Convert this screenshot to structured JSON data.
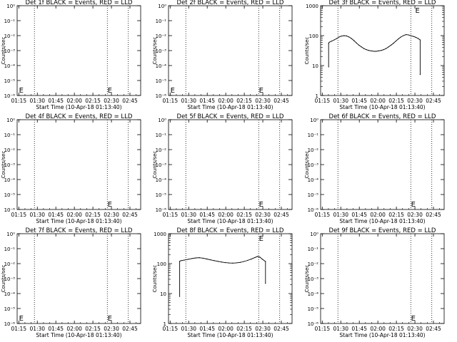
{
  "chart_data": [
    {
      "type": "line",
      "title": "Det 1f BLACK = Events, RED = LLD",
      "xlabel": "Start Time (10-Apr-18 01:13:40)",
      "ylabel": "Counts/sec",
      "x_tick_labels": [
        "01:15",
        "01:30",
        "01:45",
        "02:00",
        "02:15",
        "02:30",
        "02:45"
      ],
      "x_tick_minutes": [
        1.33,
        16.33,
        31.33,
        46.33,
        61.33,
        76.33,
        91.33
      ],
      "xlim_minutes": [
        0,
        100
      ],
      "yscale": "log",
      "ylim": [
        1,
        1e-06
      ],
      "y_tick_values": [
        1,
        0.1,
        0.01,
        0.001,
        0.0001,
        1e-05,
        1e-06
      ],
      "y_tick_labels": [
        "10⁰",
        "10⁻¹",
        "10⁻²",
        "10⁻³",
        "10⁻⁴",
        "10⁻⁵",
        "10⁻⁶"
      ],
      "dotted_vlines_minutes": [
        14,
        73,
        90
      ],
      "markers": [
        {
          "x": 1.5,
          "label": "E"
        },
        {
          "x": 73.2,
          "label": "E"
        }
      ],
      "series": []
    },
    {
      "type": "line",
      "title": "Det 2f BLACK = Events, RED = LLD",
      "xlabel": "Start Time (10-Apr-18 01:13:40)",
      "ylabel": "Counts/sec",
      "x_tick_labels": [
        "01:15",
        "01:30",
        "01:45",
        "02:00",
        "02:15",
        "02:30",
        "02:45"
      ],
      "x_tick_minutes": [
        1.33,
        16.33,
        31.33,
        46.33,
        61.33,
        76.33,
        91.33
      ],
      "xlim_minutes": [
        0,
        100
      ],
      "yscale": "log",
      "ylim": [
        1,
        1e-06
      ],
      "y_tick_values": [
        1,
        0.1,
        0.01,
        0.001,
        0.0001,
        1e-05,
        1e-06
      ],
      "y_tick_labels": [
        "10⁰",
        "10⁻¹",
        "10⁻²",
        "10⁻³",
        "10⁻⁴",
        "10⁻⁵",
        "10⁻⁶"
      ],
      "dotted_vlines_minutes": [
        14,
        73,
        90
      ],
      "markers": [
        {
          "x": 1.5,
          "label": "E"
        },
        {
          "x": 73.2,
          "label": "E"
        }
      ],
      "series": []
    },
    {
      "type": "line",
      "title": "Det 3f BLACK = Events, RED = LLD",
      "xlabel": "Start Time (10-Apr-18 01:13:40)",
      "ylabel": "Counts/sec",
      "x_tick_labels": [
        "01:15",
        "01:30",
        "01:45",
        "02:00",
        "02:15",
        "02:30",
        "02:45"
      ],
      "x_tick_minutes": [
        1.33,
        16.33,
        31.33,
        46.33,
        61.33,
        76.33,
        91.33
      ],
      "xlim_minutes": [
        0,
        100
      ],
      "yscale": "log",
      "ylim": [
        1,
        1000
      ],
      "y_tick_values": [
        1,
        10,
        100,
        1000
      ],
      "y_tick_labels": [
        "1",
        "10",
        "100",
        "1000"
      ],
      "dotted_vlines_minutes": [
        14,
        73,
        90
      ],
      "markers": [
        {
          "x": 76.6,
          "label": "E"
        }
      ],
      "series": [
        {
          "color": "#000000",
          "x": [
            6.5,
            6.5,
            7,
            9,
            11,
            13,
            15,
            17,
            19,
            21,
            23,
            25,
            27,
            29,
            31,
            33,
            35,
            37,
            39,
            41,
            43,
            45,
            47,
            49,
            51,
            53,
            55,
            57,
            59,
            61,
            63,
            65,
            67,
            69,
            71,
            73,
            75,
            77,
            79,
            80.6,
            80.6
          ],
          "y": [
            9,
            55,
            60,
            66,
            72,
            80,
            90,
            97,
            100,
            98,
            90,
            80,
            68,
            57,
            48,
            42,
            37,
            34,
            32,
            31,
            30,
            30,
            31,
            32,
            34,
            37,
            42,
            48,
            56,
            66,
            78,
            90,
            100,
            108,
            106,
            99,
            94,
            88,
            80,
            72,
            5
          ]
        }
      ]
    },
    {
      "type": "line",
      "title": "Det 4f BLACK = Events, RED = LLD",
      "xlabel": "Start Time (10-Apr-18 01:13:40)",
      "ylabel": "Counts/sec",
      "x_tick_labels": [
        "01:15",
        "01:30",
        "01:45",
        "02:00",
        "02:15",
        "02:30",
        "02:45"
      ],
      "x_tick_minutes": [
        1.33,
        16.33,
        31.33,
        46.33,
        61.33,
        76.33,
        91.33
      ],
      "xlim_minutes": [
        0,
        100
      ],
      "yscale": "log",
      "ylim": [
        1,
        1e-06
      ],
      "y_tick_values": [
        1,
        0.1,
        0.01,
        0.001,
        0.0001,
        1e-05,
        1e-06
      ],
      "y_tick_labels": [
        "10⁰",
        "10⁻¹",
        "10⁻²",
        "10⁻³",
        "10⁻⁴",
        "10⁻⁵",
        "10⁻⁶"
      ],
      "dotted_vlines_minutes": [
        14,
        73,
        90
      ],
      "markers": [
        {
          "x": 73.2,
          "label": "E"
        }
      ],
      "series": []
    },
    {
      "type": "line",
      "title": "Det 5f BLACK = Events, RED = LLD",
      "xlabel": "Start Time (10-Apr-18 01:13:40)",
      "ylabel": "Counts/sec",
      "x_tick_labels": [
        "01:15",
        "01:30",
        "01:45",
        "02:00",
        "02:15",
        "02:30",
        "02:45"
      ],
      "x_tick_minutes": [
        1.33,
        16.33,
        31.33,
        46.33,
        61.33,
        76.33,
        91.33
      ],
      "xlim_minutes": [
        0,
        100
      ],
      "yscale": "log",
      "ylim": [
        1,
        1e-06
      ],
      "y_tick_values": [
        1,
        0.1,
        0.01,
        0.001,
        0.0001,
        1e-05,
        1e-06
      ],
      "y_tick_labels": [
        "10⁰",
        "10⁻¹",
        "10⁻²",
        "10⁻³",
        "10⁻⁴",
        "10⁻⁵",
        "10⁻⁶"
      ],
      "dotted_vlines_minutes": [
        14,
        73,
        90
      ],
      "markers": [
        {
          "x": 73.2,
          "label": "E"
        }
      ],
      "series": []
    },
    {
      "type": "line",
      "title": "Det 6f BLACK = Events, RED = LLD",
      "xlabel": "Start Time (10-Apr-18 01:13:40)",
      "ylabel": "Counts/sec",
      "x_tick_labels": [
        "01:15",
        "01:30",
        "01:45",
        "02:00",
        "02:15",
        "02:30",
        "02:45"
      ],
      "x_tick_minutes": [
        1.33,
        16.33,
        31.33,
        46.33,
        61.33,
        76.33,
        91.33
      ],
      "xlim_minutes": [
        0,
        100
      ],
      "yscale": "log",
      "ylim": [
        1,
        1e-06
      ],
      "y_tick_values": [
        1,
        0.1,
        0.01,
        0.001,
        0.0001,
        1e-05,
        1e-06
      ],
      "y_tick_labels": [
        "10⁰",
        "10⁻¹",
        "10⁻²",
        "10⁻³",
        "10⁻⁴",
        "10⁻⁵",
        "10⁻⁶"
      ],
      "dotted_vlines_minutes": [
        14,
        73,
        90
      ],
      "markers": [
        {
          "x": 73.2,
          "label": "E"
        }
      ],
      "series": []
    },
    {
      "type": "line",
      "title": "Det 7f BLACK = Events, RED = LLD",
      "xlabel": "Start Time (10-Apr-18 01:13:40)",
      "ylabel": "Counts/sec",
      "x_tick_labels": [
        "01:15",
        "01:30",
        "01:45",
        "02:00",
        "02:15",
        "02:30",
        "02:45"
      ],
      "x_tick_minutes": [
        1.33,
        16.33,
        31.33,
        46.33,
        61.33,
        76.33,
        91.33
      ],
      "xlim_minutes": [
        0,
        100
      ],
      "yscale": "log",
      "ylim": [
        1,
        1e-06
      ],
      "y_tick_values": [
        1,
        0.1,
        0.01,
        0.001,
        0.0001,
        1e-05,
        1e-06
      ],
      "y_tick_labels": [
        "10⁰",
        "10⁻¹",
        "10⁻²",
        "10⁻³",
        "10⁻⁴",
        "10⁻⁵",
        "10⁻⁶"
      ],
      "dotted_vlines_minutes": [
        14,
        73,
        90
      ],
      "markers": [
        {
          "x": 1.5,
          "label": "E"
        },
        {
          "x": 73.2,
          "label": "E"
        }
      ],
      "series": []
    },
    {
      "type": "line",
      "title": "Det 8f BLACK = Events, RED = LLD",
      "xlabel": "Start Time (10-Apr-18 01:13:40)",
      "ylabel": "Counts/sec",
      "x_tick_labels": [
        "01:15",
        "01:30",
        "01:45",
        "02:00",
        "02:15",
        "02:30",
        "02:45"
      ],
      "x_tick_minutes": [
        1.33,
        16.33,
        31.33,
        46.33,
        61.33,
        76.33,
        91.33
      ],
      "xlim_minutes": [
        0,
        100
      ],
      "yscale": "log",
      "ylim": [
        1,
        1000
      ],
      "y_tick_values": [
        1,
        10,
        100,
        1000
      ],
      "y_tick_labels": [
        "1",
        "10",
        "100",
        "1000"
      ],
      "dotted_vlines_minutes": [
        14,
        73,
        90
      ],
      "markers": [
        {
          "x": 73.2,
          "label": "E"
        }
      ],
      "series": [
        {
          "color": "#000000",
          "x": [
            9,
            9,
            10,
            13,
            16,
            19,
            22,
            25,
            28,
            31,
            34,
            37,
            40,
            43,
            46,
            49,
            52,
            55,
            58,
            61,
            64,
            67,
            70,
            72,
            74,
            76,
            78.5,
            78.5
          ],
          "y": [
            8,
            120,
            125,
            132,
            140,
            148,
            155,
            158,
            152,
            143,
            134,
            126,
            119,
            113,
            108,
            105,
            104,
            106,
            110,
            118,
            128,
            142,
            160,
            174,
            165,
            140,
            118,
            22
          ]
        }
      ]
    },
    {
      "type": "line",
      "title": "Det 9f BLACK = Events, RED = LLD",
      "xlabel": "Start Time (10-Apr-18 01:13:40)",
      "ylabel": "Counts/sec",
      "x_tick_labels": [
        "01:15",
        "01:30",
        "01:45",
        "02:00",
        "02:15",
        "02:30",
        "02:45"
      ],
      "x_tick_minutes": [
        1.33,
        16.33,
        31.33,
        46.33,
        61.33,
        76.33,
        91.33
      ],
      "xlim_minutes": [
        0,
        100
      ],
      "yscale": "log",
      "ylim": [
        1,
        1e-06
      ],
      "y_tick_values": [
        1,
        0.1,
        0.01,
        0.001,
        0.0001,
        1e-05,
        1e-06
      ],
      "y_tick_labels": [
        "10⁰",
        "10⁻¹",
        "10⁻²",
        "10⁻³",
        "10⁻⁴",
        "10⁻⁵",
        "10⁻⁶"
      ],
      "dotted_vlines_minutes": [
        14,
        73,
        90
      ],
      "markers": [
        {
          "x": 73.2,
          "label": "E"
        }
      ],
      "series": []
    }
  ]
}
